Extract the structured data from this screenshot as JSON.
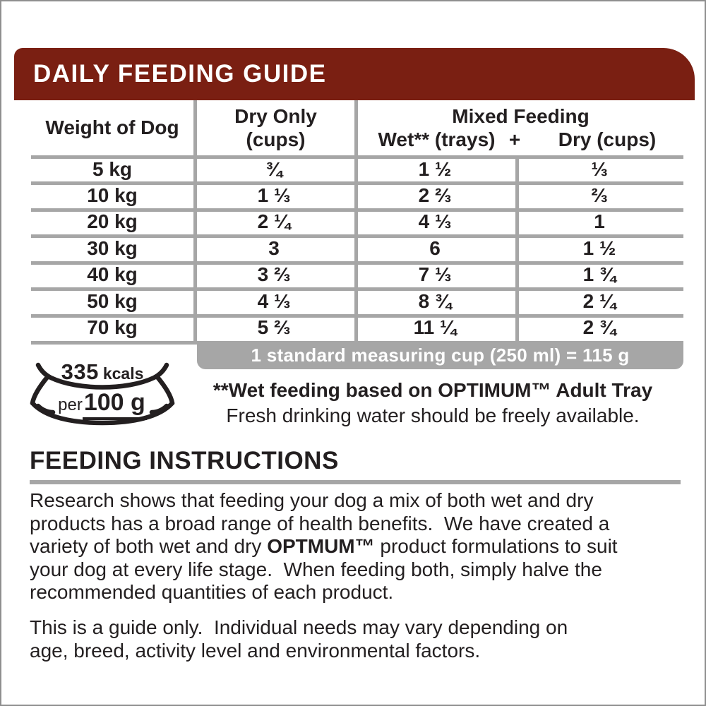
{
  "colors": {
    "banner_maroon": "#7a1f12",
    "grid_gray": "#a6a6a6",
    "text_dark": "#231f20",
    "page_border_gray": "#8f8f8f"
  },
  "banner": {
    "title": "DAILY FEEDING GUIDE"
  },
  "table": {
    "col_weight_header": "Weight of Dog",
    "col_dry_header_line1": "Dry Only",
    "col_dry_header_line2": "(cups)",
    "mixed_header": "Mixed Feeding",
    "sub_wet": "Wet** (trays)",
    "sub_plus": "+",
    "sub_dry": "Dry (cups)",
    "rows": [
      [
        "5 kg",
        "¾",
        "1 ½",
        "⅓"
      ],
      [
        "10 kg",
        "1 ⅓",
        "2 ⅔",
        "⅔"
      ],
      [
        "20 kg",
        "2 ¼",
        "4 ⅓",
        "1"
      ],
      [
        "30 kg",
        "3",
        "6",
        "1 ½"
      ],
      [
        "40 kg",
        "3 ⅔",
        "7 ⅓",
        "1 ¾"
      ],
      [
        "50 kg",
        "4 ⅓",
        "8 ¾",
        "2 ¼"
      ],
      [
        "70 kg",
        "5 ⅔",
        "11 ¼",
        "2 ¾"
      ]
    ],
    "cup_note": "1 standard measuring cup (250 ml) = 115 g"
  },
  "kcal_badge": {
    "value": "335",
    "unit": "kcals",
    "per_label": "per",
    "per_amount": "100 g"
  },
  "footnotes": {
    "wet": "**Wet feeding based on OPTIMUM™ Adult Tray",
    "water": "Fresh drinking water should be freely available."
  },
  "instructions": {
    "heading": "FEEDING INSTRUCTIONS",
    "para1_lines": [
      "Research shows that feeding your dog a mix of both wet and dry",
      "products has a broad range of health benefits.  We have created a",
      [
        {
          "t": "variety of both wet and dry "
        },
        {
          "t": "OPTMUM™",
          "b": true
        },
        {
          "t": " product formulations to suit"
        }
      ],
      "your dog at every life stage.  When feeding both, simply halve the",
      "recommended quantities of each product."
    ],
    "para2_lines": [
      "This is a guide only.  Individual needs may vary depending on",
      "age, breed, activity level and environmental factors."
    ]
  }
}
